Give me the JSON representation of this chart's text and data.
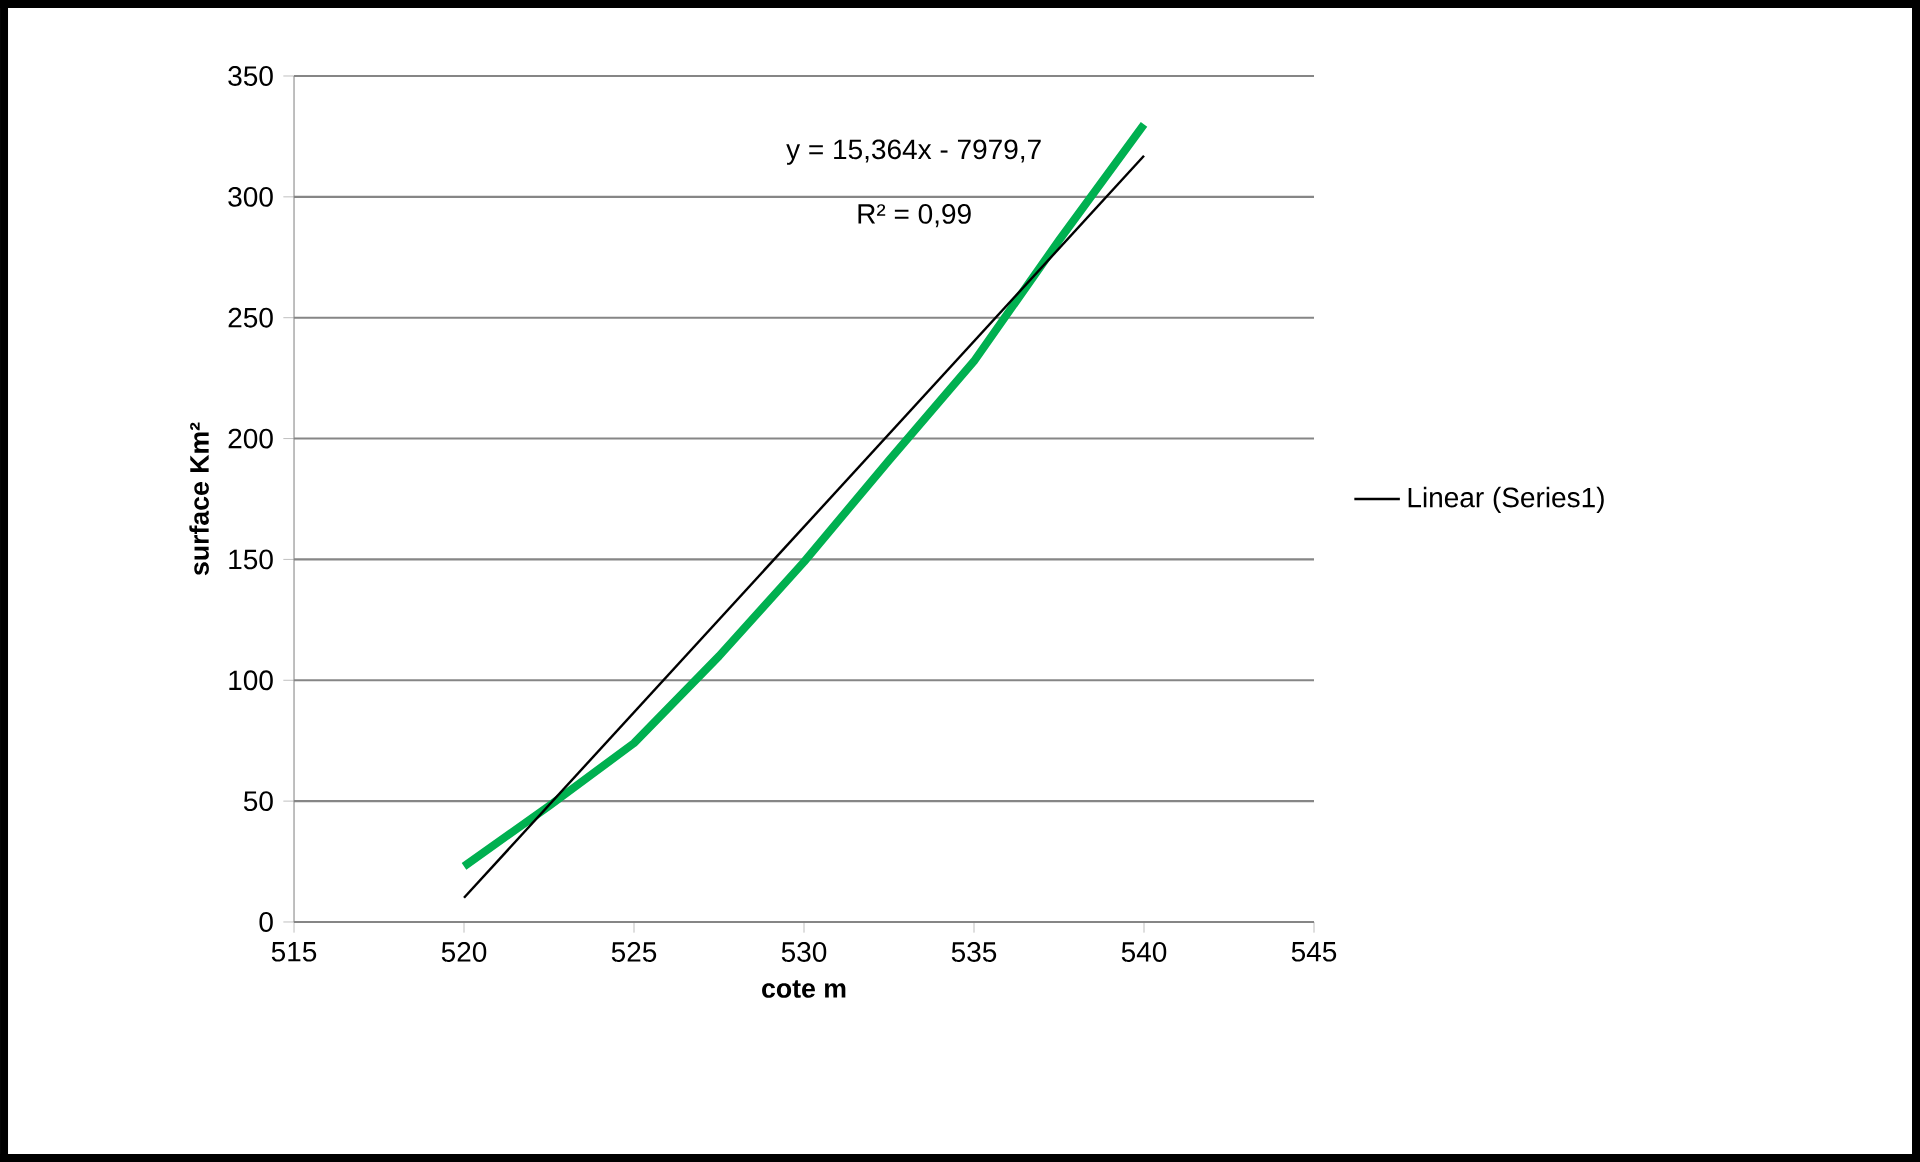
{
  "chart_data": {
    "type": "line",
    "xlabel": "cote m",
    "ylabel": "surface Km²",
    "x": [
      520,
      522.5,
      525,
      527.5,
      530,
      532.5,
      535,
      537.5,
      540
    ],
    "series": [
      {
        "color": "#00b050",
        "values": [
          23,
          48,
          74,
          110,
          149,
          191,
          232,
          282,
          330
        ]
      },
      {
        "name": "Linear (Series1)",
        "color": "#000000",
        "x": [
          520,
          540
        ],
        "values": [
          10,
          317
        ]
      }
    ],
    "annotations": [
      "y = 15,364x - 7979,7",
      "R² = 0,99"
    ],
    "xlim": [
      515,
      545
    ],
    "xticks": [
      515,
      520,
      525,
      530,
      535,
      540,
      545
    ],
    "ylim": [
      0,
      350
    ],
    "yticks": [
      0,
      50,
      100,
      150,
      200,
      250,
      300,
      350
    ],
    "grid": "y",
    "legend": "right"
  }
}
